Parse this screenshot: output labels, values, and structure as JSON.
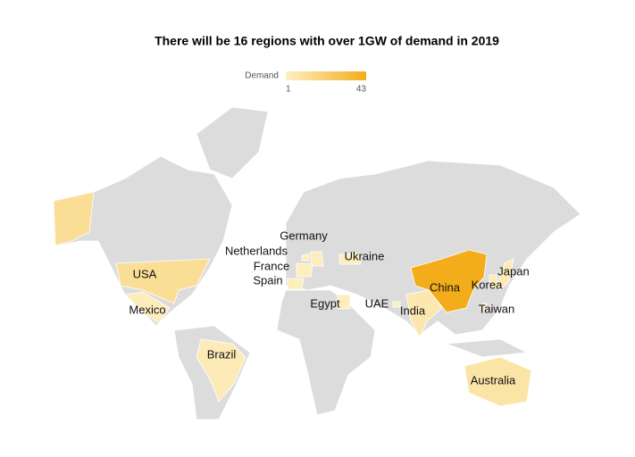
{
  "title": "There will be 16 regions with over 1GW of demand in 2019",
  "legend": {
    "label": "Demand",
    "min": 1,
    "max": 43,
    "colors": [
      "#fdf0c2",
      "#f3ad1a"
    ]
  },
  "regions": [
    {
      "label": "USA",
      "value": 12
    },
    {
      "label": "Mexico",
      "value": 3
    },
    {
      "label": "Brazil",
      "value": 4
    },
    {
      "label": "Netherlands",
      "value": 2
    },
    {
      "label": "Germany",
      "value": 3
    },
    {
      "label": "France",
      "value": 2
    },
    {
      "label": "Spain",
      "value": 2
    },
    {
      "label": "Ukraine",
      "value": 2
    },
    {
      "label": "Egypt",
      "value": 2
    },
    {
      "label": "UAE",
      "value": 2
    },
    {
      "label": "India",
      "value": 6
    },
    {
      "label": "China",
      "value": 43
    },
    {
      "label": "Korea",
      "value": 4
    },
    {
      "label": "Japan",
      "value": 5
    },
    {
      "label": "Taiwan",
      "value": 3
    },
    {
      "label": "Australia",
      "value": 8
    }
  ]
}
